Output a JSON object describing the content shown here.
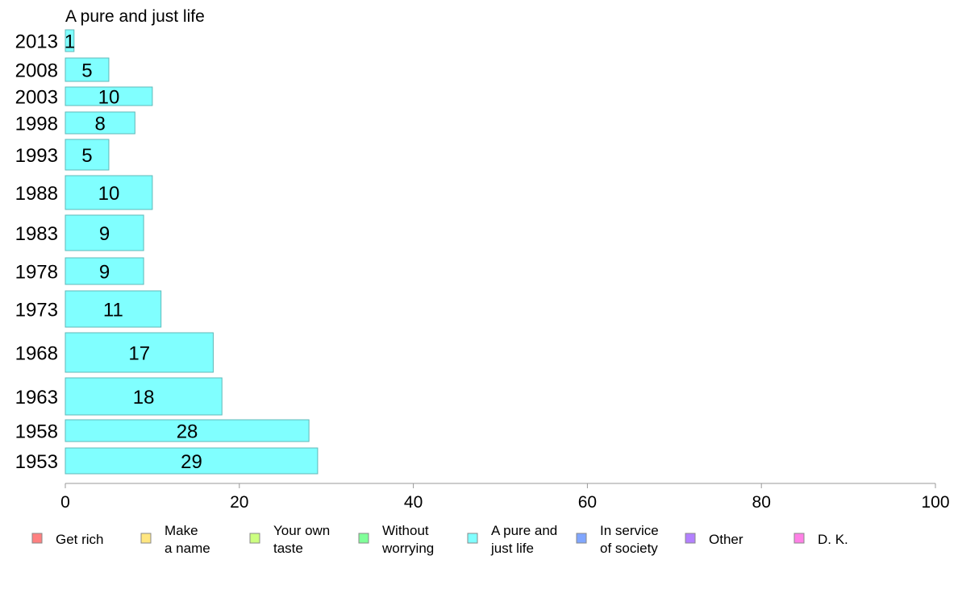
{
  "chart_data": {
    "type": "bar",
    "orientation": "horizontal",
    "title": "A pure and just life",
    "categories": [
      "2013",
      "2008",
      "2003",
      "1998",
      "1993",
      "1988",
      "1983",
      "1978",
      "1973",
      "1968",
      "1963",
      "1958",
      "1953"
    ],
    "values": [
      1,
      5,
      10,
      8,
      5,
      10,
      9,
      9,
      11,
      17,
      18,
      28,
      29
    ],
    "bar_value_labels": [
      "1",
      "5",
      "10",
      "8",
      "5",
      "10",
      "9",
      "9",
      "11",
      "17",
      "18",
      "28",
      "29"
    ],
    "bar_color": "#80ffff",
    "bar_border_color": "#5fb8b8",
    "xlim": [
      0,
      100
    ],
    "xticks": [
      0,
      20,
      40,
      60,
      80,
      100
    ],
    "xtick_labels": [
      "0",
      "20",
      "40",
      "60",
      "80",
      "100"
    ],
    "grid": false,
    "legend_position": "bottom",
    "legend": [
      {
        "lines": [
          "Get rich"
        ],
        "color": "#ff8080"
      },
      {
        "lines": [
          "Make",
          "a name"
        ],
        "color": "#ffe680"
      },
      {
        "lines": [
          "Your own",
          "taste"
        ],
        "color": "#ccff80"
      },
      {
        "lines": [
          "Without",
          "worrying"
        ],
        "color": "#80ff99"
      },
      {
        "lines": [
          "A pure and",
          "just life"
        ],
        "color": "#80ffff"
      },
      {
        "lines": [
          "In service",
          "of society"
        ],
        "color": "#80a6ff"
      },
      {
        "lines": [
          "Other"
        ],
        "color": "#b380ff"
      },
      {
        "lines": [
          "D. K."
        ],
        "color": "#ff80e6"
      }
    ]
  }
}
